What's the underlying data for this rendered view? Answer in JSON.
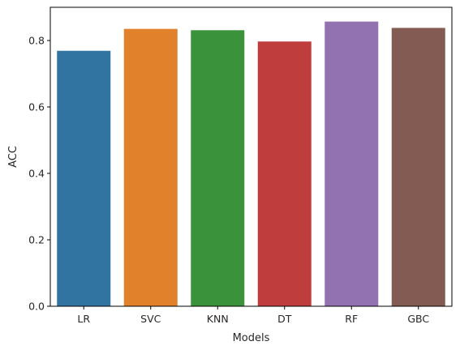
{
  "chart_data": {
    "type": "bar",
    "title": "",
    "xlabel": "Models",
    "ylabel": "ACC",
    "categories": [
      "LR",
      "SVC",
      "KNN",
      "DT",
      "RF",
      "GBC"
    ],
    "values": [
      0.769,
      0.835,
      0.831,
      0.797,
      0.857,
      0.838
    ],
    "colors": [
      "#3274a1",
      "#e1812c",
      "#3a923a",
      "#c03d3e",
      "#9372b2",
      "#845b53"
    ],
    "ylim": [
      0,
      0.9
    ],
    "yticks": [
      0.0,
      0.2,
      0.4,
      0.6,
      0.8
    ],
    "ytick_labels": [
      "0.0",
      "0.2",
      "0.4",
      "0.6",
      "0.8"
    ],
    "grid": false,
    "legend": "none"
  }
}
